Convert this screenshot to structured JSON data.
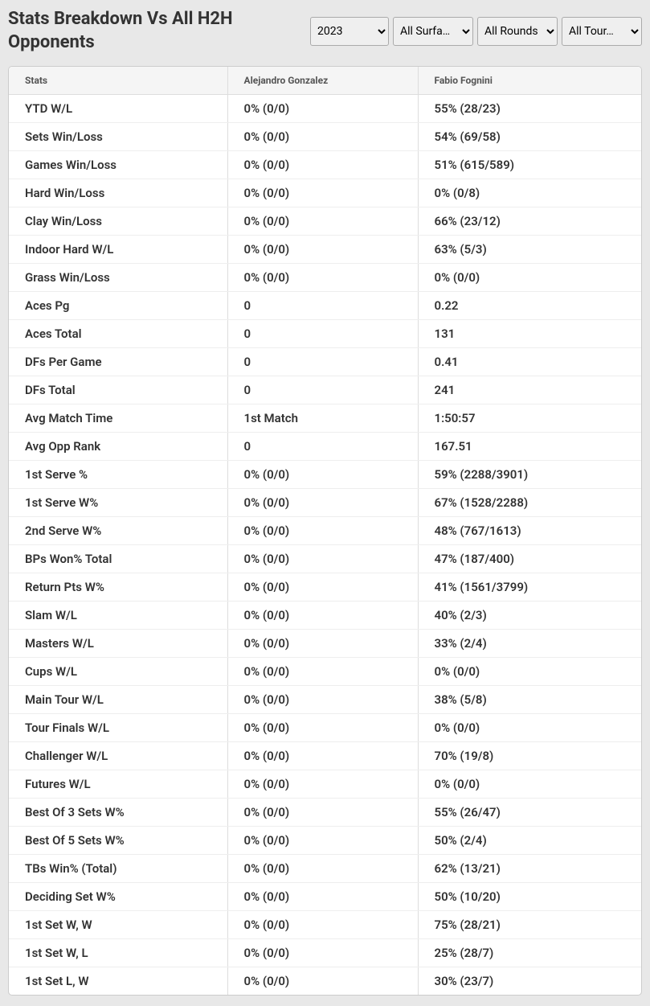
{
  "title": "Stats Breakdown Vs All H2H Opponents",
  "filters": {
    "year": "2023",
    "surface": "All Surfa…",
    "round": "All Rounds",
    "tour": "All Tour…"
  },
  "table": {
    "headers": {
      "stats": "Stats",
      "player1": "Alejandro Gonzalez",
      "player2": "Fabio Fognini"
    },
    "rows": [
      {
        "stat": "YTD W/L",
        "p1": "0% (0/0)",
        "p2": "55% (28/23)"
      },
      {
        "stat": "Sets Win/Loss",
        "p1": "0% (0/0)",
        "p2": "54% (69/58)"
      },
      {
        "stat": "Games Win/Loss",
        "p1": "0% (0/0)",
        "p2": "51% (615/589)"
      },
      {
        "stat": "Hard Win/Loss",
        "p1": "0% (0/0)",
        "p2": "0% (0/8)"
      },
      {
        "stat": "Clay Win/Loss",
        "p1": "0% (0/0)",
        "p2": "66% (23/12)"
      },
      {
        "stat": "Indoor Hard W/L",
        "p1": "0% (0/0)",
        "p2": "63% (5/3)"
      },
      {
        "stat": "Grass Win/Loss",
        "p1": "0% (0/0)",
        "p2": "0% (0/0)"
      },
      {
        "stat": "Aces Pg",
        "p1": "0",
        "p2": "0.22"
      },
      {
        "stat": "Aces Total",
        "p1": "0",
        "p2": "131"
      },
      {
        "stat": "DFs Per Game",
        "p1": "0",
        "p2": "0.41"
      },
      {
        "stat": "DFs Total",
        "p1": "0",
        "p2": "241"
      },
      {
        "stat": "Avg Match Time",
        "p1": "1st Match",
        "p2": "1:50:57"
      },
      {
        "stat": "Avg Opp Rank",
        "p1": "0",
        "p2": "167.51"
      },
      {
        "stat": "1st Serve %",
        "p1": "0% (0/0)",
        "p2": "59% (2288/3901)"
      },
      {
        "stat": "1st Serve W%",
        "p1": "0% (0/0)",
        "p2": "67% (1528/2288)"
      },
      {
        "stat": "2nd Serve W%",
        "p1": "0% (0/0)",
        "p2": "48% (767/1613)"
      },
      {
        "stat": "BPs Won% Total",
        "p1": "0% (0/0)",
        "p2": "47% (187/400)"
      },
      {
        "stat": "Return Pts W%",
        "p1": "0% (0/0)",
        "p2": "41% (1561/3799)"
      },
      {
        "stat": "Slam W/L",
        "p1": "0% (0/0)",
        "p2": "40% (2/3)"
      },
      {
        "stat": "Masters W/L",
        "p1": "0% (0/0)",
        "p2": "33% (2/4)"
      },
      {
        "stat": "Cups W/L",
        "p1": "0% (0/0)",
        "p2": "0% (0/0)"
      },
      {
        "stat": "Main Tour W/L",
        "p1": "0% (0/0)",
        "p2": "38% (5/8)"
      },
      {
        "stat": "Tour Finals W/L",
        "p1": "0% (0/0)",
        "p2": "0% (0/0)"
      },
      {
        "stat": "Challenger W/L",
        "p1": "0% (0/0)",
        "p2": "70% (19/8)"
      },
      {
        "stat": "Futures W/L",
        "p1": "0% (0/0)",
        "p2": "0% (0/0)"
      },
      {
        "stat": "Best Of 3 Sets W%",
        "p1": "0% (0/0)",
        "p2": "55% (26/47)"
      },
      {
        "stat": "Best Of 5 Sets W%",
        "p1": "0% (0/0)",
        "p2": "50% (2/4)"
      },
      {
        "stat": "TBs Win% (Total)",
        "p1": "0% (0/0)",
        "p2": "62% (13/21)"
      },
      {
        "stat": "Deciding Set W%",
        "p1": "0% (0/0)",
        "p2": "50% (10/20)"
      },
      {
        "stat": "1st Set W, W",
        "p1": "0% (0/0)",
        "p2": "75% (28/21)"
      },
      {
        "stat": "1st Set W, L",
        "p1": "0% (0/0)",
        "p2": "25% (28/7)"
      },
      {
        "stat": "1st Set L, W",
        "p1": "0% (0/0)",
        "p2": "30% (23/7)"
      }
    ]
  }
}
